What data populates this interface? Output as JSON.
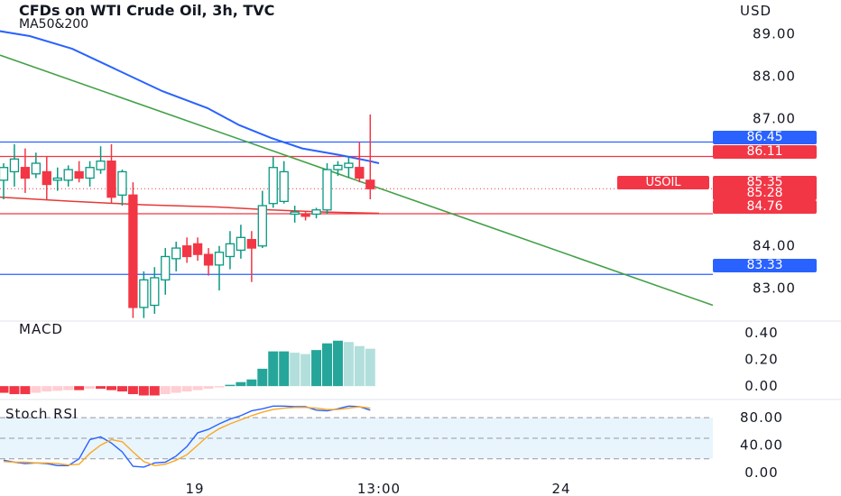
{
  "header": {
    "title": "CFDs on WTI Crude Oil, 3h, TVC",
    "indicator": "MA50&200",
    "currency": "USD"
  },
  "panes": {
    "macd_label": "MACD",
    "stoch_label": "Stoch RSI"
  },
  "price_tags": [
    {
      "label": "86.45",
      "value": 86.45,
      "color": "#2962ff"
    },
    {
      "label": "86.11",
      "value": 86.11,
      "color": "#f23645"
    },
    {
      "label": "85.35",
      "value": 85.35,
      "color": "#f23645"
    },
    {
      "label": "85.28",
      "value": 85.28,
      "color": "#f23645"
    },
    {
      "label": "84.76",
      "value": 84.76,
      "color": "#f23645"
    },
    {
      "label": "83.33",
      "value": 83.33,
      "color": "#2962ff"
    }
  ],
  "symbol_tag": {
    "label": "USOIL",
    "color": "#f23645"
  },
  "colors": {
    "up": "#089981",
    "down": "#f23645",
    "ma_fast": "#2962ff",
    "ma_slow": "#e53935",
    "trendline": "#43a047",
    "hline_blue": "#2962ff",
    "hline_red": "#f23645",
    "stoch_k": "#2962ff",
    "stoch_d": "#f9a825"
  },
  "chart_data": [
    {
      "type": "candlestick",
      "title": "CFDs on WTI Crude Oil, 3h, TVC",
      "y_axis_ticks": [
        "89.00",
        "88.00",
        "87.00",
        "84.00",
        "83.00"
      ],
      "y_tick_values": [
        89,
        88,
        87,
        84,
        83
      ],
      "x_axis_ticks": [
        "19",
        "13:00",
        "24"
      ],
      "ylim": [
        82.25,
        89.8
      ],
      "candles": [
        {
          "o": 85.55,
          "h": 85.95,
          "l": 85.1,
          "c": 85.85
        },
        {
          "o": 85.75,
          "h": 86.4,
          "l": 85.4,
          "c": 86.05
        },
        {
          "o": 85.85,
          "h": 86.3,
          "l": 85.25,
          "c": 85.6
        },
        {
          "o": 85.7,
          "h": 86.2,
          "l": 85.6,
          "c": 85.95
        },
        {
          "o": 85.75,
          "h": 86.1,
          "l": 85.1,
          "c": 85.45
        },
        {
          "o": 85.55,
          "h": 85.85,
          "l": 85.3,
          "c": 85.6
        },
        {
          "o": 85.55,
          "h": 85.9,
          "l": 85.4,
          "c": 85.8
        },
        {
          "o": 85.75,
          "h": 86.0,
          "l": 85.5,
          "c": 85.6
        },
        {
          "o": 85.6,
          "h": 86.0,
          "l": 85.4,
          "c": 85.85
        },
        {
          "o": 85.8,
          "h": 86.35,
          "l": 85.7,
          "c": 86.0
        },
        {
          "o": 86.0,
          "h": 86.4,
          "l": 85.0,
          "c": 85.15
        },
        {
          "o": 85.2,
          "h": 85.8,
          "l": 84.95,
          "c": 85.75
        },
        {
          "o": 85.2,
          "h": 85.5,
          "l": 82.3,
          "c": 82.55
        },
        {
          "o": 82.55,
          "h": 83.4,
          "l": 82.3,
          "c": 83.2
        },
        {
          "o": 82.6,
          "h": 83.5,
          "l": 82.4,
          "c": 83.25
        },
        {
          "o": 83.2,
          "h": 83.95,
          "l": 82.85,
          "c": 83.75
        },
        {
          "o": 83.7,
          "h": 84.1,
          "l": 83.4,
          "c": 83.95
        },
        {
          "o": 84.0,
          "h": 84.2,
          "l": 83.6,
          "c": 83.75
        },
        {
          "o": 84.05,
          "h": 84.2,
          "l": 83.65,
          "c": 83.8
        },
        {
          "o": 83.8,
          "h": 83.95,
          "l": 83.3,
          "c": 83.55
        },
        {
          "o": 83.55,
          "h": 84.0,
          "l": 82.95,
          "c": 83.85
        },
        {
          "o": 83.75,
          "h": 84.35,
          "l": 83.45,
          "c": 84.05
        },
        {
          "o": 83.9,
          "h": 84.5,
          "l": 83.7,
          "c": 84.2
        },
        {
          "o": 84.15,
          "h": 84.35,
          "l": 83.15,
          "c": 83.95
        },
        {
          "o": 84.0,
          "h": 85.3,
          "l": 83.95,
          "c": 84.95
        },
        {
          "o": 85.0,
          "h": 86.1,
          "l": 84.9,
          "c": 85.85
        },
        {
          "o": 85.05,
          "h": 86.0,
          "l": 85.0,
          "c": 85.75
        },
        {
          "o": 84.75,
          "h": 84.95,
          "l": 84.55,
          "c": 84.8
        },
        {
          "o": 84.75,
          "h": 84.8,
          "l": 84.6,
          "c": 84.7
        },
        {
          "o": 84.75,
          "h": 84.9,
          "l": 84.65,
          "c": 84.85
        },
        {
          "o": 84.85,
          "h": 85.95,
          "l": 84.75,
          "c": 85.8
        },
        {
          "o": 85.8,
          "h": 86.0,
          "l": 85.65,
          "c": 85.9
        },
        {
          "o": 85.85,
          "h": 86.1,
          "l": 85.6,
          "c": 85.95
        },
        {
          "o": 85.85,
          "h": 86.45,
          "l": 85.5,
          "c": 85.6
        },
        {
          "o": 85.55,
          "h": 87.1,
          "l": 85.1,
          "c": 85.35
        }
      ],
      "ma50": [
        [
          -10,
          89.1
        ],
        [
          33,
          88.95
        ],
        [
          80,
          88.65
        ],
        [
          130,
          88.15
        ],
        [
          180,
          87.65
        ],
        [
          230,
          87.25
        ],
        [
          265,
          86.85
        ],
        [
          300,
          86.55
        ],
        [
          335,
          86.3
        ],
        [
          375,
          86.15
        ],
        [
          410,
          86.0
        ],
        [
          420,
          85.95
        ]
      ],
      "ma200": [
        [
          0,
          85.15
        ],
        [
          80,
          85.05
        ],
        [
          160,
          84.97
        ],
        [
          240,
          84.92
        ],
        [
          300,
          84.85
        ],
        [
          360,
          84.8
        ],
        [
          420,
          84.77
        ]
      ],
      "trendline": [
        [
          0,
          88.5
        ],
        [
          790,
          82.6
        ]
      ],
      "hlines": [
        86.45,
        86.11,
        84.76,
        83.33
      ],
      "last_price_line": 85.35
    },
    {
      "type": "bar",
      "title": "MACD",
      "y_axis_ticks": [
        "0.40",
        "0.20",
        "0.00"
      ],
      "y_tick_values": [
        0.4,
        0.2,
        0
      ],
      "ylim": [
        -0.08,
        0.46
      ],
      "values": [
        -0.05,
        -0.06,
        -0.06,
        -0.05,
        -0.04,
        -0.035,
        -0.03,
        -0.03,
        -0.02,
        -0.02,
        -0.03,
        -0.04,
        -0.06,
        -0.07,
        -0.07,
        -0.06,
        -0.05,
        -0.04,
        -0.03,
        -0.02,
        -0.01,
        0.01,
        0.03,
        0.05,
        0.13,
        0.26,
        0.26,
        0.25,
        0.24,
        0.27,
        0.32,
        0.34,
        0.33,
        0.3,
        0.28
      ]
    },
    {
      "type": "line",
      "title": "Stoch RSI",
      "y_axis_ticks": [
        "80.00",
        "40.00",
        "0.00"
      ],
      "y_tick_values": [
        80,
        40,
        0
      ],
      "ylim": [
        -8,
        100
      ],
      "band": [
        20,
        80
      ],
      "series": [
        {
          "values": [
            18,
            15,
            13,
            14,
            13,
            10,
            10,
            20,
            48,
            52,
            43,
            30,
            9,
            8,
            14,
            15,
            24,
            38,
            58,
            63,
            71,
            78,
            83,
            90,
            93,
            97,
            97,
            96,
            96,
            91,
            90,
            93,
            97,
            96,
            91
          ]
        },
        {
          "values": [
            16,
            15,
            15,
            14,
            14,
            13,
            11,
            12,
            28,
            40,
            48,
            45,
            30,
            16,
            10,
            12,
            18,
            26,
            40,
            54,
            64,
            71,
            77,
            83,
            88,
            92,
            94,
            95,
            95,
            94,
            92,
            92,
            94,
            96,
            94
          ]
        }
      ]
    }
  ]
}
